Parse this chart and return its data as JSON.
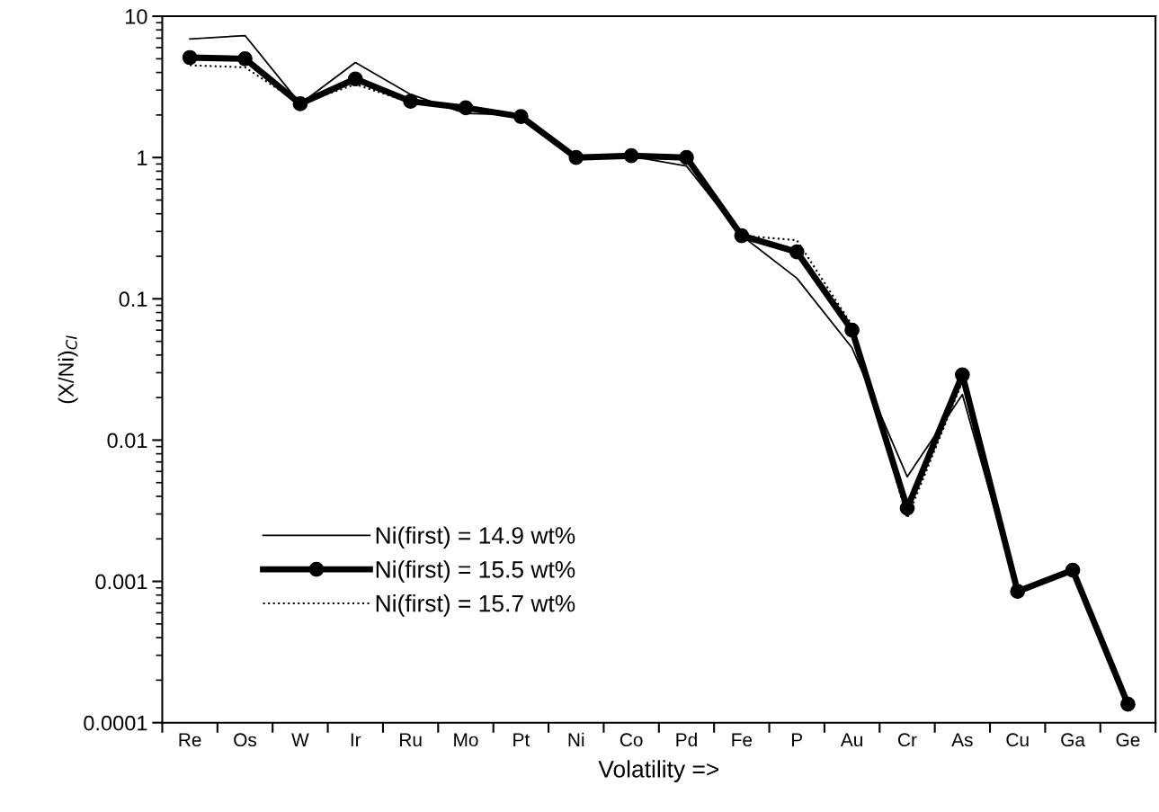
{
  "chart_data": {
    "type": "line",
    "xlabel": "Volatility =>",
    "ylabel": "(X/Ni)$_{CI}$",
    "categories": [
      "Re",
      "Os",
      "W",
      "Ir",
      "Ru",
      "Mo",
      "Pt",
      "Ni",
      "Co",
      "Pd",
      "Fe",
      "P",
      "Au",
      "Cr",
      "As",
      "Cu",
      "Ga",
      "Ge"
    ],
    "log": "y",
    "ylim": [
      0.0001,
      10
    ],
    "yticks": [
      0.0001,
      0.001,
      0.01,
      0.1,
      1,
      10
    ],
    "grid": false,
    "legend": "lower left",
    "series": [
      {
        "name": "Ni(first) = 14.9 wt%",
        "color": "#000000",
        "line_style": "solid",
        "marker": "none",
        "values": [
          6.9,
          7.3,
          2.4,
          4.7,
          2.8,
          2.05,
          2.0,
          1.0,
          1.02,
          0.87,
          0.28,
          0.14,
          0.045,
          0.0055,
          0.021,
          0.00085,
          0.0012,
          0.000135
        ]
      },
      {
        "name": "Ni(first) = 15.5 wt%",
        "color": "#000000",
        "line_style": "solid",
        "marker": "circle",
        "values": [
          5.1,
          5.0,
          2.4,
          3.6,
          2.5,
          2.25,
          1.95,
          1.0,
          1.03,
          1.0,
          0.28,
          0.215,
          0.06,
          0.0033,
          0.029,
          0.00085,
          0.0012,
          0.000135
        ]
      },
      {
        "name": "Ni(first) = 15.7 wt%",
        "color": "#000000",
        "line_style": "dotted",
        "marker": "none",
        "values": [
          4.5,
          4.35,
          2.4,
          3.3,
          2.45,
          2.25,
          1.95,
          1.0,
          1.03,
          1.0,
          0.28,
          0.26,
          0.065,
          0.0028,
          0.026,
          0.00085,
          0.0012,
          0.000135
        ]
      }
    ]
  }
}
